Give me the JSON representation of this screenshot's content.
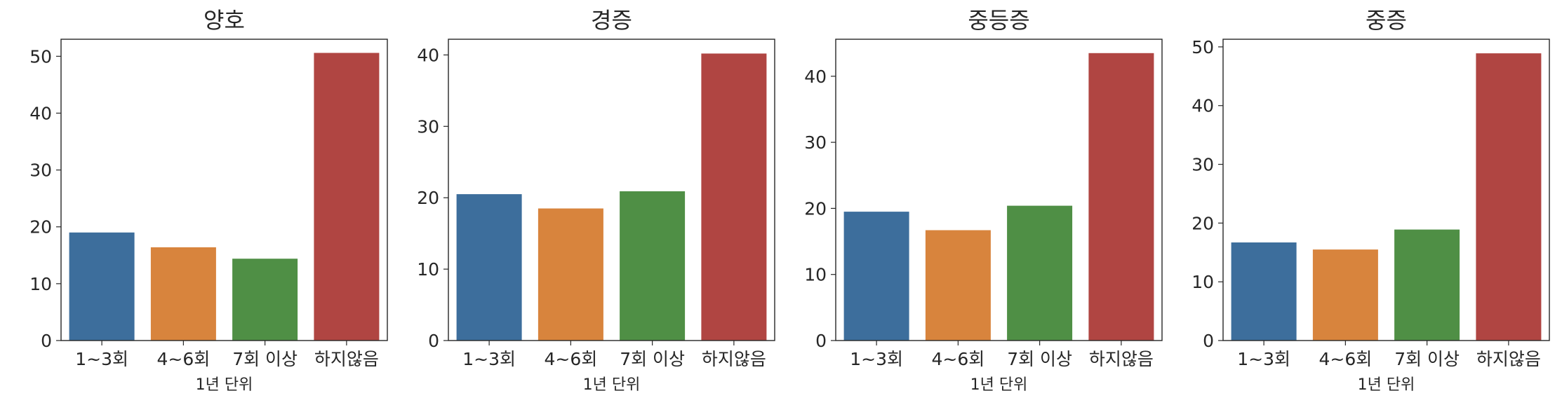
{
  "chart_data": [
    {
      "type": "bar",
      "title": "양호",
      "xlabel": "1년 단위",
      "ylabel": "",
      "categories": [
        "1~3회",
        "4~6회",
        "7회 이상",
        "하지않음"
      ],
      "values": [
        19.0,
        16.4,
        14.4,
        50.6
      ],
      "ylim": [
        0,
        53
      ],
      "yticks": [
        0,
        10,
        20,
        30,
        40,
        50
      ],
      "colors": [
        "#3d6e9c",
        "#d8843d",
        "#4f8f45",
        "#b04542"
      ],
      "grid": false
    },
    {
      "type": "bar",
      "title": "경증",
      "xlabel": "1년 단위",
      "ylabel": "",
      "categories": [
        "1~3회",
        "4~6회",
        "7회 이상",
        "하지않음"
      ],
      "values": [
        20.5,
        18.5,
        20.9,
        40.2
      ],
      "ylim": [
        0,
        42.2
      ],
      "yticks": [
        0,
        10,
        20,
        30,
        40
      ],
      "colors": [
        "#3d6e9c",
        "#d8843d",
        "#4f8f45",
        "#b04542"
      ],
      "grid": false
    },
    {
      "type": "bar",
      "title": "중등증",
      "xlabel": "1년 단위",
      "ylabel": "",
      "categories": [
        "1~3회",
        "4~6회",
        "7회 이상",
        "하지않음"
      ],
      "values": [
        19.5,
        16.7,
        20.4,
        43.5
      ],
      "ylim": [
        0,
        45.6
      ],
      "yticks": [
        0,
        10,
        20,
        30,
        40
      ],
      "colors": [
        "#3d6e9c",
        "#d8843d",
        "#4f8f45",
        "#b04542"
      ],
      "grid": false
    },
    {
      "type": "bar",
      "title": "중증",
      "xlabel": "1년 단위",
      "ylabel": "",
      "categories": [
        "1~3회",
        "4~6회",
        "7회 이상",
        "하지않음"
      ],
      "values": [
        16.7,
        15.5,
        18.9,
        48.9
      ],
      "ylim": [
        0,
        51.3
      ],
      "yticks": [
        0,
        10,
        20,
        30,
        40,
        50
      ],
      "colors": [
        "#3d6e9c",
        "#d8843d",
        "#4f8f45",
        "#b04542"
      ],
      "grid": false
    }
  ]
}
